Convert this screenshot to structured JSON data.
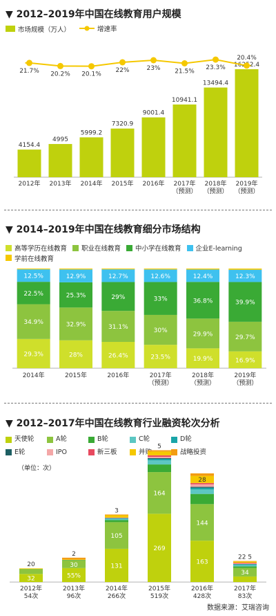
{
  "chart_data": [
    {
      "type": "bar",
      "title": "▼ 2012–2019年中国在线教育用户规模",
      "categories": [
        "2012年",
        "2013年",
        "2014年",
        "2015年",
        "2016年",
        "2017年\n（预测）",
        "2018年\n（预测）",
        "2019年\n（预测）"
      ],
      "series": [
        {
          "name": "市场规模（万人）",
          "type": "bar",
          "color": "#bfd10d",
          "values": [
            4154.4,
            4995,
            5999.2,
            7320.9,
            9001.4,
            10941.1,
            13494.4,
            16252.4
          ],
          "labels": [
            "4154.4",
            "4995",
            "5999.2",
            "7320.9",
            "9001.4",
            "10941.1",
            "13494.4",
            "16252.4"
          ]
        },
        {
          "name": "增速率",
          "type": "line",
          "color": "#f5c800",
          "values": [
            21.7,
            20.2,
            20.1,
            22,
            23,
            21.5,
            23.3,
            20.4
          ],
          "labels": [
            "21.7%",
            "20.2%",
            "20.1%",
            "22%",
            "23%",
            "21.5%",
            "23.3%",
            "20.4%"
          ]
        }
      ],
      "legend_position": "top-left"
    },
    {
      "type": "bar",
      "stacked": true,
      "percent": true,
      "title": "▼ 2014–2019年中国在线教育细分市场结构",
      "categories": [
        "2014年",
        "2015年",
        "2016年",
        "2017年\n（预测）",
        "2018年\n（预测）",
        "2019年\n（预测）"
      ],
      "series": [
        {
          "name": "高等学历在线教育",
          "color": "#cfdf2b",
          "values": [
            29.3,
            28,
            26.4,
            23.5,
            19.9,
            16.9
          ],
          "labels": [
            "29.3%",
            "28%",
            "26.4%",
            "23.5%",
            "19.9%",
            "16.9%"
          ]
        },
        {
          "name": "职业在线教育",
          "color": "#8dc43f",
          "values": [
            34.9,
            32.9,
            31.1,
            30,
            29.9,
            29.7
          ],
          "labels": [
            "34.9%",
            "32.9%",
            "31.1%",
            "30%",
            "29.9%",
            "29.7%"
          ]
        },
        {
          "name": "中小学在线教育",
          "color": "#3aaa35",
          "values": [
            22.5,
            25.3,
            29,
            33,
            36.8,
            39.9
          ],
          "labels": [
            "22.5%",
            "25.3%",
            "29%",
            "33%",
            "36.8%",
            "39.9%"
          ]
        },
        {
          "name": "企业E-learning",
          "color": "#3ec1ef",
          "values": [
            12.5,
            12.9,
            12.7,
            12.6,
            12.4,
            12.3
          ],
          "labels": [
            "12.5%",
            "12.9%",
            "12.7%",
            "12.6%",
            "12.4%",
            "12.3%"
          ]
        },
        {
          "name": "学前在线教育",
          "color": "#f5c800",
          "values": [
            0.8,
            0.9,
            0.8,
            0.9,
            1,
            1.2
          ],
          "labels": [
            "",
            "",
            "",
            "",
            "",
            ""
          ]
        }
      ],
      "legend_position": "top"
    },
    {
      "type": "bar",
      "stacked": true,
      "title": "▼ 2012–2017年中国在线教育行业融资轮次分析",
      "unit_note": "（单位：次）",
      "categories": [
        "2012年\n54次",
        "2013年\n96次",
        "2014年\n266次",
        "2015年\n519次",
        "2016年\n428次",
        "2017年\n83次"
      ],
      "totals": [
        54,
        96,
        266,
        519,
        428,
        83
      ],
      "series": [
        {
          "name": "天使轮",
          "color": "#bfd10d",
          "values": [
            32,
            55,
            131,
            269,
            163,
            22
          ],
          "labels": [
            "32",
            "55%",
            "131",
            "269",
            "163",
            "22"
          ]
        },
        {
          "name": "A轮",
          "color": "#8dc43f",
          "values": [
            20,
            30,
            105,
            164,
            144,
            34
          ],
          "labels": [
            "20",
            "30",
            "105",
            "164",
            "144",
            "34"
          ]
        },
        {
          "name": "B轮",
          "color": "#3aaa35",
          "values": [
            0,
            2,
            8,
            30,
            40,
            6
          ],
          "labels": [
            "",
            "2",
            "",
            "",
            "",
            ""
          ]
        },
        {
          "name": "C轮",
          "color": "#5cc7c3",
          "values": [
            0,
            0,
            5,
            16,
            18,
            5
          ],
          "labels": [
            "",
            "",
            "",
            "",
            "",
            ""
          ]
        },
        {
          "name": "D轮",
          "color": "#1aa5a8",
          "values": [
            0,
            0,
            2,
            6,
            6,
            3
          ],
          "labels": [
            "",
            "",
            "",
            "",
            "",
            ""
          ]
        },
        {
          "name": "E轮",
          "color": "#1d5f63",
          "values": [
            0,
            0,
            1,
            3,
            4,
            1
          ],
          "labels": [
            "",
            "",
            "",
            "",
            "",
            ""
          ]
        },
        {
          "name": "IPO",
          "color": "#f4a7a7",
          "values": [
            0,
            0,
            1,
            5,
            10,
            2
          ],
          "labels": [
            "",
            "",
            "",
            "",
            "",
            ""
          ]
        },
        {
          "name": "新三板",
          "color": "#e84a5f",
          "values": [
            0,
            0,
            1,
            6,
            5,
            3
          ],
          "labels": [
            "",
            "",
            "",
            "",
            "",
            ""
          ]
        },
        {
          "name": "并购",
          "color": "#f5c800",
          "values": [
            2,
            2,
            9,
            15,
            28,
            5
          ],
          "labels": [
            "",
            "",
            "",
            "",
            "28",
            "5"
          ]
        },
        {
          "name": "战略投资",
          "color": "#f39c12",
          "values": [
            0,
            7,
            3,
            5,
            10,
            2
          ],
          "labels": [
            "",
            "",
            "3",
            "5",
            "",
            ""
          ]
        }
      ],
      "legend_position": "top-left"
    }
  ],
  "footer": {
    "source": "数据来源：艾瑞咨询"
  }
}
